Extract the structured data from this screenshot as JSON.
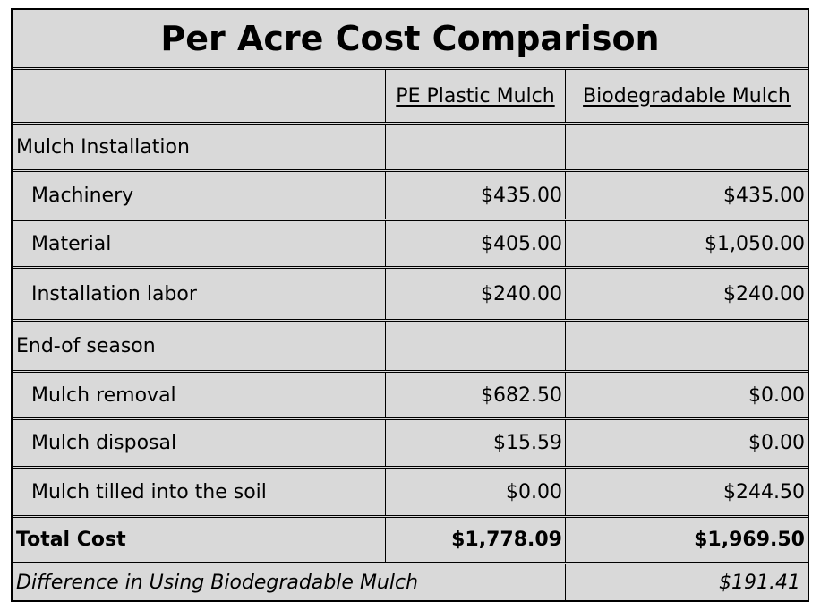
{
  "title": "Per Acre Cost Comparison",
  "columns": [
    "",
    "PE Plastic Mulch",
    "Biodegradable Mulch"
  ],
  "rows": [
    {
      "label": "Mulch Installation",
      "pe": "",
      "bio": ""
    },
    {
      "label": "Machinery",
      "pe": "$435.00",
      "bio": "$435.00"
    },
    {
      "label": "Material",
      "pe": "$405.00",
      "bio": "$1,050.00"
    },
    {
      "label": "Installation labor",
      "pe": "$240.00",
      "bio": "$240.00"
    },
    {
      "label": "End-of season",
      "pe": "",
      "bio": ""
    },
    {
      "label": "Mulch removal",
      "pe": "$682.50",
      "bio": "$0.00"
    },
    {
      "label": "Mulch disposal",
      "pe": "$15.59",
      "bio": "$0.00"
    },
    {
      "label": "Mulch tilled into the soil",
      "pe": "$0.00",
      "bio": "$244.50"
    }
  ],
  "total": {
    "label": "Total Cost",
    "pe": "$1,778.09",
    "bio": "$1,969.50"
  },
  "difference": {
    "label": "Difference in Using Biodegradable Mulch",
    "value": "$191.41"
  }
}
